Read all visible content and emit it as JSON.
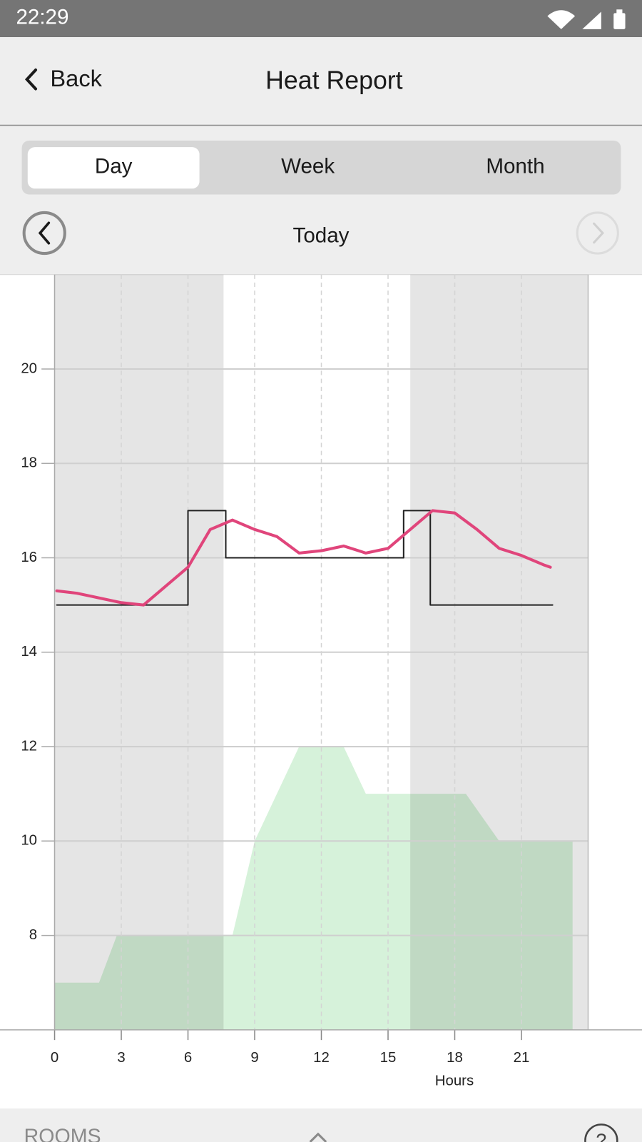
{
  "status_bar": {
    "time": "22:29"
  },
  "header": {
    "back": "Back",
    "title": "Heat Report"
  },
  "tabs": [
    "Day",
    "Week",
    "Month"
  ],
  "period": "Today",
  "chart_data": {
    "type": "line",
    "xlabel": "Hours",
    "xlim": [
      0,
      24
    ],
    "xticks": [
      0,
      3,
      6,
      9,
      12,
      15,
      18,
      21
    ],
    "ylim": [
      6,
      22
    ],
    "yticks": [
      8,
      10,
      12,
      14,
      16,
      18,
      20
    ],
    "grid": true,
    "shaded_ranges": [
      [
        0,
        7.6
      ],
      [
        16,
        24
      ]
    ],
    "area": {
      "color": "#d6f2da",
      "x": [
        0,
        2,
        2.8,
        8,
        9,
        10,
        11,
        13,
        14,
        18.5,
        20,
        23.3
      ],
      "values": [
        7,
        7,
        8,
        8,
        10,
        11,
        12,
        12,
        11,
        11,
        10,
        10
      ]
    },
    "series": [
      {
        "color": "#222222",
        "x": [
          0.1,
          6,
          6,
          7.7,
          7.7,
          15.7,
          15.7,
          16.9,
          16.9,
          22.4
        ],
        "values": [
          15,
          15,
          17,
          17,
          16,
          16,
          17,
          17,
          15,
          15
        ]
      },
      {
        "color": "#e0457b",
        "x": [
          0.1,
          1,
          2,
          3,
          4,
          5,
          6,
          7,
          8,
          9,
          10,
          11,
          12,
          13,
          14,
          15,
          16,
          17,
          18,
          19,
          20,
          21,
          22,
          22.3
        ],
        "values": [
          15.3,
          15.25,
          15.15,
          15.05,
          15.0,
          15.4,
          15.8,
          16.6,
          16.8,
          16.6,
          16.45,
          16.1,
          16.15,
          16.25,
          16.1,
          16.2,
          16.6,
          17.0,
          16.95,
          16.6,
          16.2,
          16.05,
          15.85,
          15.8
        ]
      }
    ]
  },
  "footer": {
    "rooms": "ROOMS",
    "help": "?"
  }
}
